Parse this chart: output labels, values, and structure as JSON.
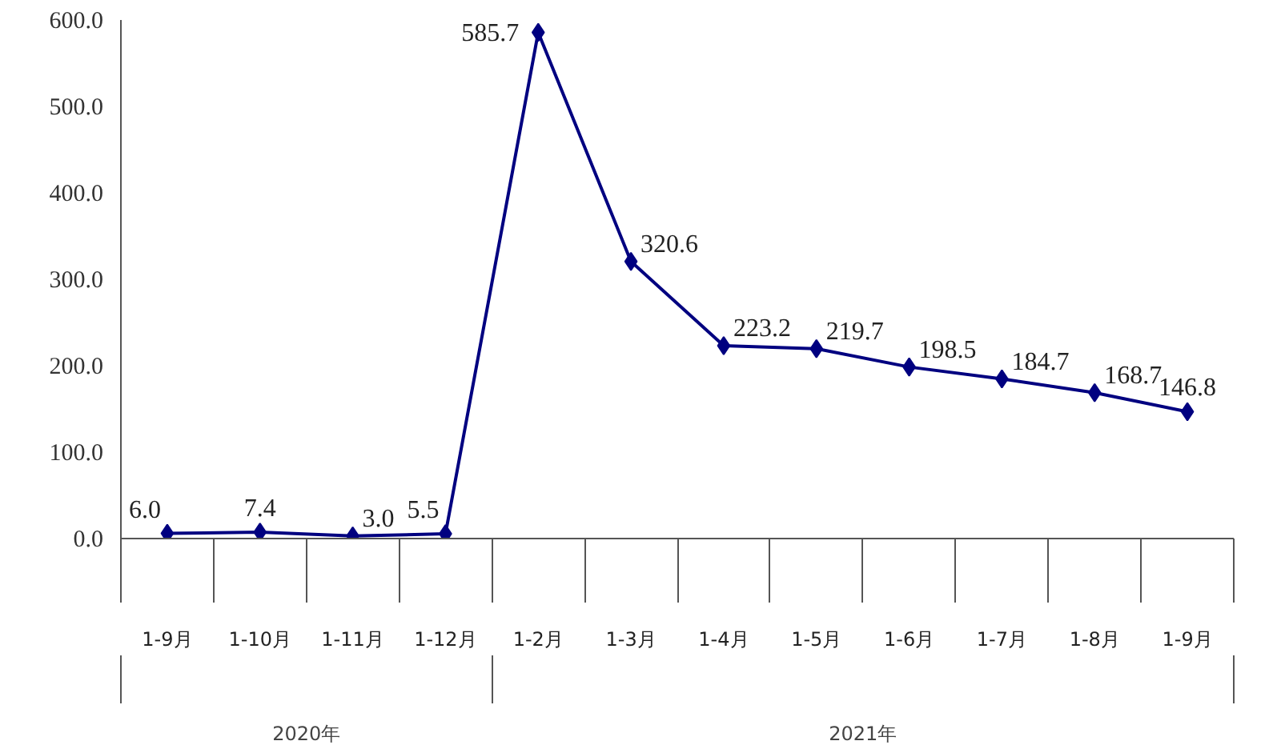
{
  "chart_data": {
    "type": "line",
    "categories": [
      "1-9月",
      "1-10月",
      "1-11月",
      "1-12月",
      "1-2月",
      "1-3月",
      "1-4月",
      "1-5月",
      "1-6月",
      "1-7月",
      "1-8月",
      "1-9月"
    ],
    "series": [
      {
        "color": "#000080",
        "values": [
          6.0,
          7.4,
          3.0,
          5.5,
          585.7,
          320.6,
          223.2,
          219.7,
          198.5,
          184.7,
          168.7,
          146.8
        ],
        "value_labels": [
          "6.0",
          "7.4",
          "3.0",
          "5.5",
          "585.7",
          "320.6",
          "223.2",
          "219.7",
          "198.5",
          "184.7",
          "168.7",
          "146.8"
        ]
      }
    ],
    "ylim": [
      0,
      600
    ],
    "yticks": [
      {
        "value": 0,
        "label": "0.0"
      },
      {
        "value": 100,
        "label": "100.0"
      },
      {
        "value": 200,
        "label": "200.0"
      },
      {
        "value": 300,
        "label": "300.0"
      },
      {
        "value": 400,
        "label": "400.0"
      },
      {
        "value": 500,
        "label": "500.0"
      },
      {
        "value": 600,
        "label": "600.0"
      }
    ],
    "annotations": [
      "2020年",
      "2021年"
    ],
    "marker": "diamond",
    "grid": false
  }
}
